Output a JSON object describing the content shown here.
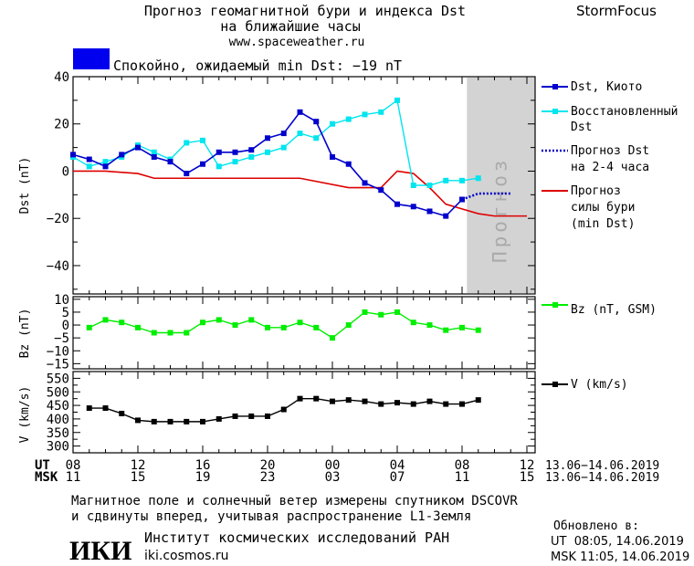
{
  "header": {
    "title_line1": "Прогноз геомагнитной бури и индекса Dst",
    "title_line2": "на ближайшие часы",
    "url": "www.spaceweather.ru",
    "brand": "StormFocus",
    "status_text": "Спокойно, ожидаемый min Dst: −19 nT",
    "status_color": "#0000ee"
  },
  "chart_data": [
    {
      "type": "line",
      "id": "dst",
      "ylabel": "Dst (nT)",
      "ylim": [
        -52,
        40
      ],
      "yticks": [
        40,
        20,
        0,
        -20,
        -40
      ],
      "x_hours": [
        0,
        1,
        2,
        3,
        4,
        5,
        6,
        7,
        8,
        9,
        10,
        11,
        12,
        13,
        14,
        15,
        16,
        17,
        18,
        19,
        20,
        21,
        22,
        23,
        24,
        25
      ],
      "forecast_label": "Прогноз",
      "series": [
        {
          "name": "Dst, Киото",
          "color": "#0000cc",
          "values": [
            7,
            5,
            2,
            7,
            10,
            6,
            4,
            -1,
            3,
            8,
            8,
            9,
            14,
            16,
            25,
            21,
            6,
            3,
            -5,
            -8,
            -14,
            -15,
            -17,
            -19,
            -12,
            null
          ]
        },
        {
          "name": "Восстановленный Dst",
          "color": "#00e5ee",
          "values": [
            6,
            2,
            4,
            6,
            11,
            8,
            5,
            12,
            13,
            2,
            4,
            6,
            8,
            10,
            16,
            14,
            20,
            22,
            24,
            25,
            30,
            -6,
            -6,
            -4,
            -4,
            -3
          ]
        },
        {
          "name": "Прогноз Dst на 2-4 часа",
          "color": "#0000cc",
          "x": [
            24,
            25,
            26,
            27
          ],
          "values": [
            -12,
            -9.5,
            -9.5,
            -9.5
          ]
        },
        {
          "name": "Прогноз силы бури (min Dst)",
          "color": "#dd0000",
          "x": [
            0,
            2,
            4,
            5,
            8,
            14,
            17,
            18,
            19,
            20,
            21,
            22,
            23,
            24,
            25,
            26,
            27,
            28
          ],
          "values": [
            0,
            0,
            -1,
            -3,
            -3,
            -3,
            -7,
            -7,
            -7,
            0,
            -1,
            -7,
            -14,
            -16,
            -18,
            -19,
            -19,
            -19
          ]
        }
      ],
      "legend": [
        {
          "line1": "Dst, Киото",
          "line2": ""
        },
        {
          "line1": "Восстановленный",
          "line2": "Dst"
        },
        {
          "line1": "Прогноз Dst",
          "line2": "на 2-4 часа"
        },
        {
          "line1": "Прогноз",
          "line2": "силы бури",
          "line3": "(min Dst)"
        }
      ]
    },
    {
      "type": "line",
      "id": "bz",
      "ylabel": "Bz (nT)",
      "ylim": [
        -17,
        11
      ],
      "yticks": [
        10,
        5,
        0,
        -5,
        -10,
        -15
      ],
      "ytick_labels": [
        "10",
        "5",
        "0",
        "−5",
        "−10",
        "−15"
      ],
      "series": [
        {
          "name": "Bz (nT, GSM)",
          "color": "#00ee00",
          "x": [
            1,
            2,
            3,
            4,
            5,
            6,
            7,
            8,
            9,
            10,
            11,
            12,
            13,
            14,
            15,
            16,
            17,
            18,
            19,
            20,
            21,
            22,
            23,
            24,
            25
          ],
          "values": [
            -1,
            2,
            1,
            -1,
            -3,
            -3,
            -3,
            1,
            2,
            0,
            2,
            -1,
            -1,
            1,
            -1,
            -5,
            0,
            5,
            4,
            5,
            1,
            0,
            -2,
            -1,
            -2
          ]
        }
      ]
    },
    {
      "type": "line",
      "id": "v",
      "ylabel": "V (km/s)",
      "ylim": [
        275,
        575
      ],
      "yticks": [
        550,
        500,
        450,
        400,
        350,
        300
      ],
      "minor_ticks": [
        575,
        525,
        475,
        425,
        375,
        325,
        275
      ],
      "ytick_labels": [
        "550",
        "500",
        "450",
        "400",
        "350",
        "300"
      ],
      "series": [
        {
          "name": "V (km/s)",
          "color": "#000000",
          "x": [
            1,
            2,
            3,
            4,
            5,
            6,
            7,
            8,
            9,
            10,
            11,
            12,
            13,
            14,
            15,
            16,
            17,
            18,
            19,
            20,
            21,
            22,
            23,
            24,
            25
          ],
          "values": [
            440,
            440,
            420,
            395,
            390,
            390,
            390,
            390,
            400,
            410,
            410,
            410,
            435,
            475,
            475,
            465,
            470,
            465,
            455,
            460,
            455,
            465,
            455,
            455,
            470
          ]
        }
      ]
    }
  ],
  "x_axis": {
    "ut_label": "UT",
    "msk_label": "MSK",
    "ut_ticks": [
      "08",
      "12",
      "16",
      "20",
      "00",
      "04",
      "08",
      "12"
    ],
    "msk_ticks": [
      "11",
      "15",
      "19",
      "23",
      "03",
      "07",
      "11",
      "15"
    ],
    "range_ut": "13.06−14.06.2019",
    "range_msk": "13.06−14.06.2019"
  },
  "footer": {
    "note_line1": "Магнитное поле и солнечный ветер измерены спутником DSCOVR",
    "note_line2": "и сдвинуты вперед, учитывая распространение L1-Земля",
    "institute": "Институт космических исследований РАН",
    "site": "iki.cosmos.ru",
    "logo_text": "ИКИ",
    "updated_label": "Обновлено в:",
    "updated_ut": "UT  08:05, 14.06.2019",
    "updated_msk": "MSK 11:05, 14.06.2019"
  }
}
